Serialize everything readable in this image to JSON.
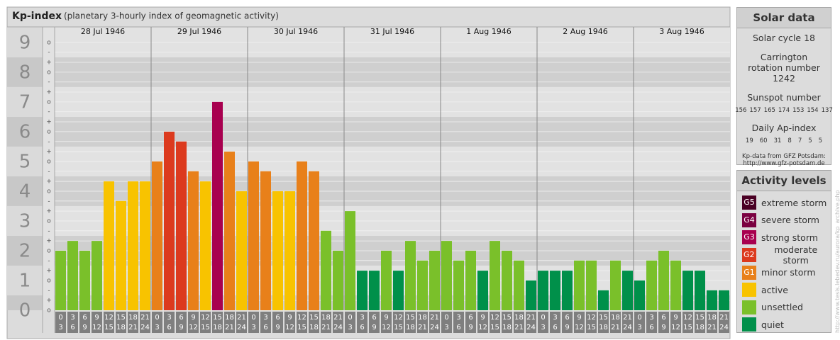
{
  "chart_data": {
    "type": "bar",
    "title": "Kp-index",
    "subtitle": "(planetary 3-hourly index of geomagnetic activity)",
    "days": [
      "28 Jul 1946",
      "29 Jul 1946",
      "30 Jul 1946",
      "31 Jul 1946",
      "1 Aug 1946",
      "2 Aug 1946",
      "3 Aug 1946"
    ],
    "hour_start": [
      "0",
      "3",
      "6",
      "9",
      "12",
      "15",
      "18",
      "21"
    ],
    "hour_end": [
      "3",
      "6",
      "9",
      "12",
      "15",
      "18",
      "21",
      "24"
    ],
    "values": [
      2,
      2.33,
      2,
      2.33,
      4.33,
      3.67,
      4.33,
      4.33,
      5,
      6,
      5.67,
      4.67,
      4.33,
      7,
      5.33,
      4,
      5,
      4.67,
      4,
      4,
      5,
      4.67,
      2.67,
      2,
      3.33,
      1.33,
      1.33,
      2,
      1.33,
      2.33,
      1.67,
      2,
      2.33,
      1.67,
      2,
      1.33,
      2.33,
      2,
      1.67,
      1,
      1.33,
      1.33,
      1.33,
      1.67,
      1.67,
      0.67,
      1.67,
      1.33,
      1,
      1.67,
      2,
      1.67,
      1.33,
      1.33,
      0.67,
      0.67
    ],
    "colors": [
      "#7ac02a",
      "#7ac02a",
      "#7ac02a",
      "#7ac02a",
      "#f8c300",
      "#f8c300",
      "#f8c300",
      "#f8c300",
      "#e8801a",
      "#dc3a1e",
      "#dc3a1e",
      "#e8801a",
      "#f8c300",
      "#a8004f",
      "#e8801a",
      "#f8c300",
      "#e8801a",
      "#e8801a",
      "#f8c300",
      "#f8c300",
      "#e8801a",
      "#e8801a",
      "#7ac02a",
      "#7ac02a",
      "#7ac02a",
      "#00904a",
      "#00904a",
      "#7ac02a",
      "#00904a",
      "#7ac02a",
      "#7ac02a",
      "#7ac02a",
      "#7ac02a",
      "#7ac02a",
      "#7ac02a",
      "#00904a",
      "#7ac02a",
      "#7ac02a",
      "#7ac02a",
      "#00904a",
      "#00904a",
      "#00904a",
      "#00904a",
      "#7ac02a",
      "#7ac02a",
      "#00904a",
      "#7ac02a",
      "#00904a",
      "#00904a",
      "#7ac02a",
      "#7ac02a",
      "#7ac02a",
      "#00904a",
      "#00904a",
      "#00904a",
      "#00904a"
    ],
    "ylim": [
      0,
      9.52
    ],
    "yticks": [
      0,
      1,
      2,
      3,
      4,
      5,
      6,
      7,
      8,
      9
    ],
    "yminor": [
      {
        "value": 0,
        "label": "o"
      },
      {
        "value": 0.33,
        "label": "+"
      },
      {
        "value": 0.67,
        "label": "-"
      },
      {
        "value": 1,
        "label": "o"
      },
      {
        "value": 1.33,
        "label": "+"
      },
      {
        "value": 1.67,
        "label": "-"
      },
      {
        "value": 2,
        "label": "o"
      },
      {
        "value": 2.33,
        "label": "+"
      },
      {
        "value": 2.67,
        "label": "-"
      },
      {
        "value": 3,
        "label": "o"
      },
      {
        "value": 3.33,
        "label": "+"
      },
      {
        "value": 3.67,
        "label": "-"
      },
      {
        "value": 4,
        "label": "o"
      },
      {
        "value": 4.33,
        "label": "+"
      },
      {
        "value": 4.67,
        "label": "-"
      },
      {
        "value": 5,
        "label": "o"
      },
      {
        "value": 5.33,
        "label": "+"
      },
      {
        "value": 5.67,
        "label": "-"
      },
      {
        "value": 6,
        "label": "o"
      },
      {
        "value": 6.33,
        "label": "+"
      },
      {
        "value": 6.67,
        "label": "-"
      },
      {
        "value": 7,
        "label": "o"
      },
      {
        "value": 7.33,
        "label": "+"
      },
      {
        "value": 7.67,
        "label": "-"
      },
      {
        "value": 8,
        "label": "o"
      },
      {
        "value": 8.33,
        "label": "+"
      },
      {
        "value": 8.67,
        "label": "-"
      },
      {
        "value": 9,
        "label": "o"
      }
    ]
  },
  "solar_data": {
    "title": "Solar data",
    "cycle": "Solar cycle 18",
    "carrington": "Carrington rotation number 1242",
    "sunspot_title": "Sunspot number",
    "sunspots": [
      156,
      157,
      165,
      174,
      153,
      154,
      137
    ],
    "ap_title": "Daily Ap-index",
    "ap": [
      19,
      60,
      31,
      8,
      7,
      5,
      5
    ],
    "source": "Kp-data from GFZ Potsdam:",
    "source_url": "http://www.gfz-potsdam.de"
  },
  "activity_levels": {
    "title": "Activity levels",
    "items": [
      {
        "code": "G5",
        "label": "extreme storm",
        "color": "#4a0024"
      },
      {
        "code": "G4",
        "label": "severe storm",
        "color": "#7a0040"
      },
      {
        "code": "G3",
        "label": "strong storm",
        "color": "#a8004f"
      },
      {
        "code": "G2",
        "label": "moderate storm",
        "color": "#dc3a1e"
      },
      {
        "code": "G1",
        "label": "minor storm",
        "color": "#e8801a"
      },
      {
        "label": "active",
        "color": "#f8c300"
      },
      {
        "label": "unsettled",
        "color": "#7ac02a"
      },
      {
        "label": "quiet",
        "color": "#00904a"
      }
    ]
  },
  "watermark": "http://www.tesis.lebedev.ru/aurora/kp_archive.php"
}
